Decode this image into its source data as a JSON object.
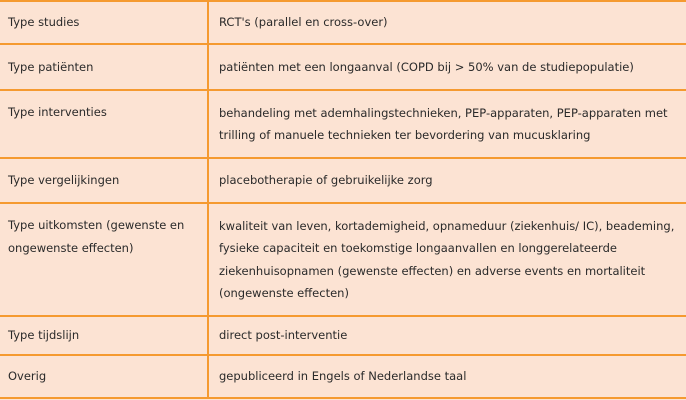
{
  "rows": [
    {
      "label": "Type studies",
      "value": "RCT's (parallel en cross-over)"
    },
    {
      "label": "Type patiënten",
      "value": "patiënten met een longaanval (COPD bij > 50% van de studiepopulatie)"
    },
    {
      "label": "Type interventies",
      "value": "behandeling met ademhalingstechnieken, PEP-apparaten, PEP-apparaten met trilling of manuele technieken ter bevordering van mucusklaring"
    },
    {
      "label": "Type vergelijkingen",
      "value": "placebotherapie of gebruikelijke zorg"
    },
    {
      "label": "Type uitkomsten (gewenste en ongewenste effecten)",
      "value": "kwaliteit van leven, kortademigheid, opnameduur (ziekenhuis/ IC), beademing, fysieke capaciteit en toekomstige longaanvallen en longgerelateerde ziekenhuisopnamen (gewenste effecten) en adverse events en mortaliteit (ongewenste effecten)"
    },
    {
      "label": "Type tijdslijn",
      "value": "direct post-interventie"
    },
    {
      "label": "Overig",
      "value": "gepubliceerd in Engels of Nederlandse taal"
    }
  ],
  "colors": {
    "background": "#fce3d3",
    "border": "#f59a30"
  }
}
